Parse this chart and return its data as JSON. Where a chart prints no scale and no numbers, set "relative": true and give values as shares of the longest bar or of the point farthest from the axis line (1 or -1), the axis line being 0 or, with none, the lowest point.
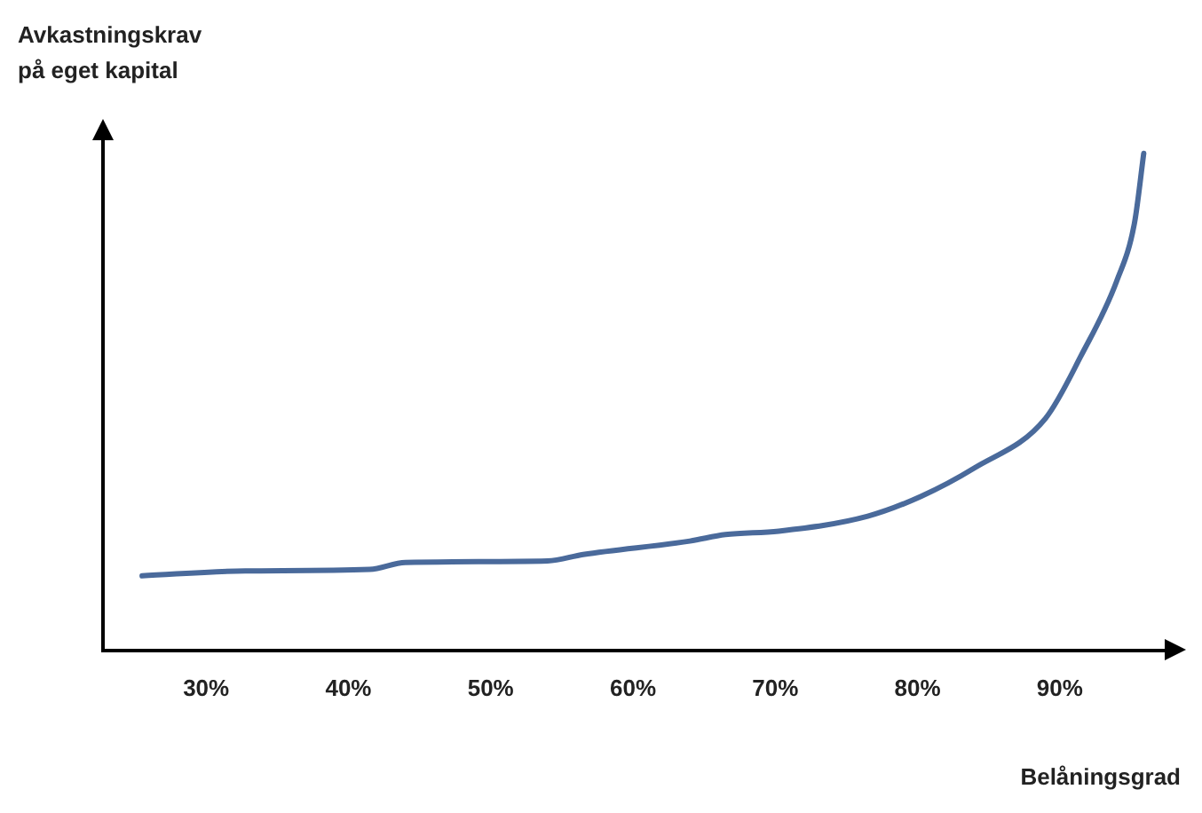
{
  "chart_data": {
    "type": "line",
    "xlabel": "Belåningsgrad",
    "ylabel": "Avkastningskrav\npå eget kapital",
    "relative": true,
    "tick_labels": "x",
    "grid": false,
    "legend": false,
    "marker": "none",
    "line_style": "solid",
    "xlim": [
      22.75,
      97.5
    ],
    "xticks": [
      {
        "value": 30,
        "label": "30%"
      },
      {
        "value": 40,
        "label": "40%"
      },
      {
        "value": 50,
        "label": "50%"
      },
      {
        "value": 60,
        "label": "60%"
      },
      {
        "value": 70,
        "label": "70%"
      },
      {
        "value": 80,
        "label": "80%"
      },
      {
        "value": 90,
        "label": "90%"
      }
    ],
    "series": [
      {
        "color": "#4a6a9b",
        "x": [
          25.5,
          32.75,
          41.5,
          44,
          54,
          56.5,
          64,
          66.5,
          70.25,
          76.5,
          80.25,
          84,
          89,
          91.5,
          94,
          95.25,
          95.9
        ],
        "values": [
          0.15,
          0.16,
          0.163,
          0.177,
          0.18,
          0.193,
          0.22,
          0.233,
          0.24,
          0.27,
          0.31,
          0.367,
          0.467,
          0.593,
          0.743,
          0.86,
          1
        ]
      }
    ]
  }
}
